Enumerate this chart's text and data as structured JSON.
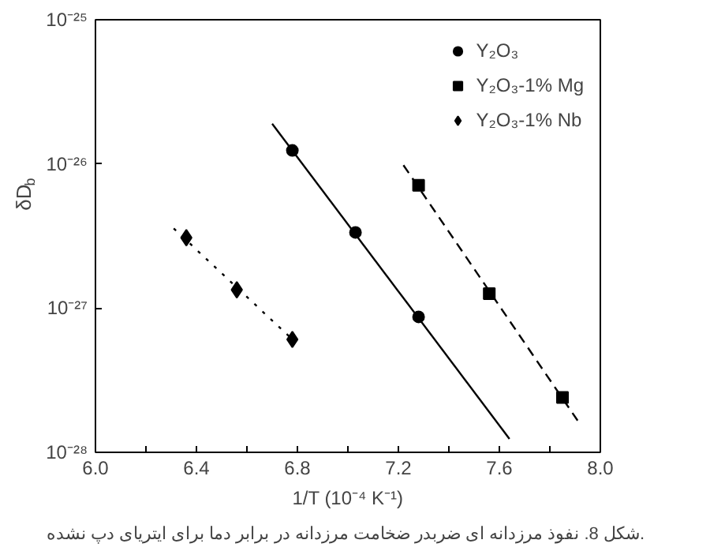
{
  "chart_data": {
    "type": "scatter",
    "xlabel": "1/T (10⁻⁴ K⁻¹)",
    "ylabel": "δD$_{b}$",
    "annotations": [
      "شکل 8. نفوذ مرزدانه ای  ضربدر ضخامت مرزدانه در برابر دما برای ایتریای دپ نشده."
    ],
    "log": "y",
    "grid": false,
    "legend": "top right",
    "xlim": [
      6.0,
      8.0
    ],
    "xticks": [
      {
        "value": 6.0,
        "label": "6.0"
      },
      {
        "value": 6.2,
        "label": null
      },
      6.4,
      {
        "value": 6.6,
        "label": null
      },
      6.8,
      {
        "value": 7.0,
        "label": null
      },
      7.2,
      {
        "value": 7.4,
        "label": null
      },
      7.6,
      {
        "value": 7.8,
        "label": null
      },
      {
        "value": 8.0,
        "label": "8.0"
      }
    ],
    "ylim": [
      1e-28,
      1e-25
    ],
    "yticks": [
      {
        "value": 1e-28,
        "label": "10⁻²⁸"
      },
      {
        "value": 1e-27,
        "label": "10⁻²⁷"
      },
      {
        "value": 1e-26,
        "label": "10⁻²⁶"
      },
      {
        "value": 1e-25,
        "label": "10⁻²⁵"
      }
    ],
    "series": [
      {
        "name": "Y₂O₃",
        "marker": "circle",
        "color": "#000000",
        "x": [
          6.78,
          7.03,
          7.28
        ],
        "values": [
          1.24e-26,
          3.35e-27,
          8.7e-28
        ]
      },
      {
        "name": "Y₂O₃-1% Mg",
        "marker": "square",
        "color": "#000000",
        "x": [
          7.28,
          7.56,
          7.85
        ],
        "values": [
          7.1e-27,
          1.26e-27,
          2.4e-28
        ]
      },
      {
        "name": "Y₂O₃-1% Nb",
        "marker": "diamond",
        "color": "#000000",
        "x": [
          6.36,
          6.56,
          6.78
        ],
        "values": [
          3.08e-27,
          1.34e-27,
          6.07e-28
        ]
      },
      {
        "type": "line",
        "line_style": "solid",
        "color": "#000000",
        "x": [
          6.7,
          7.64
        ],
        "values": [
          1.9e-26,
          1.24e-28
        ]
      },
      {
        "type": "line",
        "line_style": "dashed",
        "color": "#000000",
        "x": [
          7.22,
          7.91
        ],
        "values": [
          9.8e-27,
          1.66e-28
        ]
      },
      {
        "type": "line",
        "line_style": "dotted",
        "color": "#000000",
        "x": [
          6.31,
          6.78
        ],
        "values": [
          3.57e-27,
          6.07e-28
        ]
      }
    ]
  }
}
